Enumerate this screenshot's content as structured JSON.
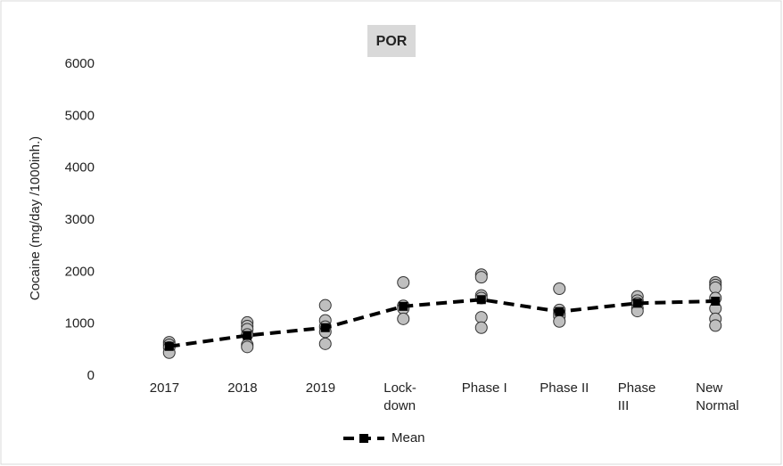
{
  "chart_data": {
    "type": "line",
    "title": "POR",
    "y_label": "Cocaine (mg/day /1000inh.)",
    "categories": [
      "2017",
      "2018",
      "2019",
      "Lock-down",
      "Phase I",
      "Phase II",
      "Phase III",
      "New Normal"
    ],
    "series": [
      {
        "name": "Mean",
        "color": "#000000",
        "values": [
          570,
          780,
          930,
          1340,
          1470,
          1240,
          1400,
          1440
        ]
      }
    ],
    "points": {
      "color": "#bfbfbf",
      "values": [
        [
          650,
          600,
          550,
          450
        ],
        [
          1030,
          960,
          900,
          800,
          600,
          560
        ],
        [
          1360,
          1070,
          950,
          850,
          620
        ],
        [
          1800,
          1350,
          1300,
          1100
        ],
        [
          1950,
          1900,
          1550,
          1500,
          1130,
          930
        ],
        [
          1680,
          1270,
          1200,
          1150,
          1050
        ],
        [
          1530,
          1450,
          1400,
          1300,
          1250
        ],
        [
          1800,
          1750,
          1700,
          1500,
          1300,
          1100,
          970
        ]
      ]
    },
    "ylim": [
      0,
      6000
    ],
    "yticks": [
      0,
      1000,
      2000,
      3000,
      4000,
      5000,
      6000
    ],
    "grid": false,
    "legend": "bottom"
  }
}
